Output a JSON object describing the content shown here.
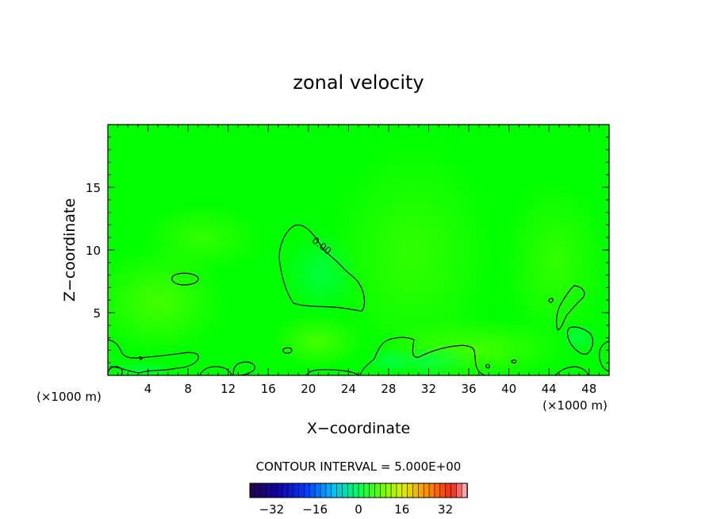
{
  "chart_data": {
    "type": "heatmap",
    "title": "zonal velocity",
    "xlabel": "X−coordinate",
    "ylabel": "Z−coordinate",
    "x_unit_left": "(×1000 m)",
    "x_unit_right": "(×1000 m)",
    "xlim": [
      0,
      50
    ],
    "ylim": [
      0,
      20
    ],
    "x_ticks": [
      4,
      8,
      12,
      16,
      20,
      24,
      28,
      32,
      36,
      40,
      44,
      48
    ],
    "x_tick_labels": [
      "4",
      "8",
      "12",
      "16",
      "20",
      "24",
      "28",
      "32",
      "36",
      "40",
      "44",
      "48"
    ],
    "y_ticks": [
      5,
      10,
      15
    ],
    "y_tick_labels": [
      "5",
      "10",
      "15"
    ],
    "contour_label": "0.00",
    "contour_interval_text": "CONTOUR INTERVAL = 5.000E+00",
    "colorbar": {
      "min": -40,
      "max": 40,
      "ticks": [
        -32,
        -16,
        0,
        16,
        32
      ],
      "tick_labels": [
        "−32",
        "−16",
        "0",
        "16",
        "32"
      ]
    },
    "colors": {
      "background": "#00ff00",
      "contour": "#000000"
    }
  }
}
